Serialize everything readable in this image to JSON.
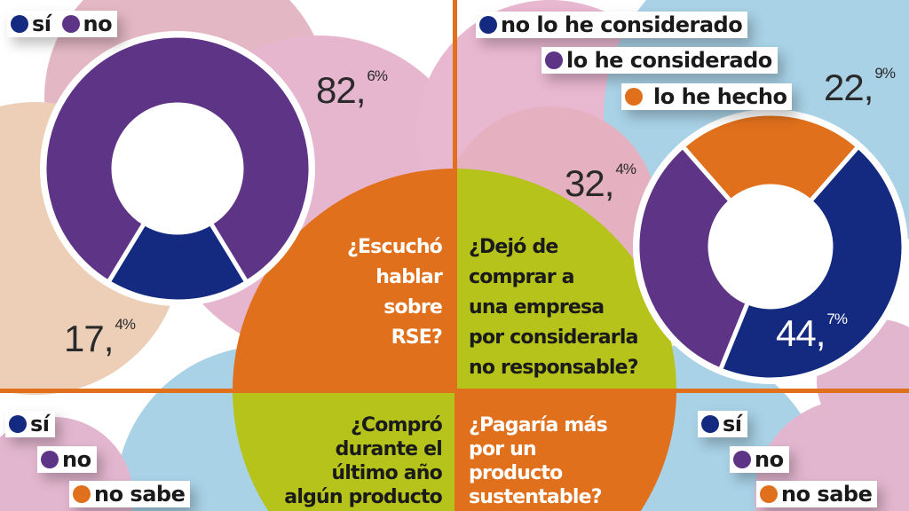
{
  "colors": {
    "navy": "#142a80",
    "purple": "#5e3487",
    "orange": "#e0701c",
    "lime": "#b5c31b"
  },
  "chart_data": [
    {
      "type": "pie",
      "title": "¿Escuchó hablar sobre RSE?",
      "categories": [
        "sí",
        "no"
      ],
      "values": [
        17.4,
        82.6
      ],
      "labels": [
        {
          "int": "17,",
          "dec": "4%"
        },
        {
          "int": "82,",
          "dec": "6%"
        }
      ],
      "colors": [
        "#142a80",
        "#5e3487"
      ]
    },
    {
      "type": "pie",
      "title": "¿Dejó de comprar a una empresa por considerarla no responsable?",
      "categories": [
        "no lo he considerado",
        "lo he considerado",
        "lo he hecho"
      ],
      "values": [
        44.7,
        32.4,
        22.9
      ],
      "labels": [
        {
          "int": "44,",
          "dec": "7%"
        },
        {
          "int": "32,",
          "dec": "4%"
        },
        {
          "int": "22,",
          "dec": "9%"
        }
      ],
      "colors": [
        "#142a80",
        "#5e3487",
        "#e0701c"
      ]
    },
    {
      "type": "pie",
      "title": "¿Compró durante el último año algún producto",
      "categories": [
        "sí",
        "no",
        "no sabe"
      ]
    },
    {
      "type": "pie",
      "title": "¿Pagaría más por un producto sustentable?",
      "categories": [
        "sí",
        "no",
        "no sabe"
      ]
    }
  ],
  "questions": {
    "q1": [
      "¿Escuchó",
      "hablar",
      "sobre",
      "RSE?"
    ],
    "q2": [
      "¿Dejó de",
      "comprar a",
      "una empresa",
      "por considerarla",
      "no responsable?"
    ],
    "q3": [
      "¿Compró",
      "durante el",
      "último año",
      "algún producto"
    ],
    "q4": [
      "¿Pagaría más",
      "por un",
      "producto",
      "sustentable?"
    ]
  }
}
